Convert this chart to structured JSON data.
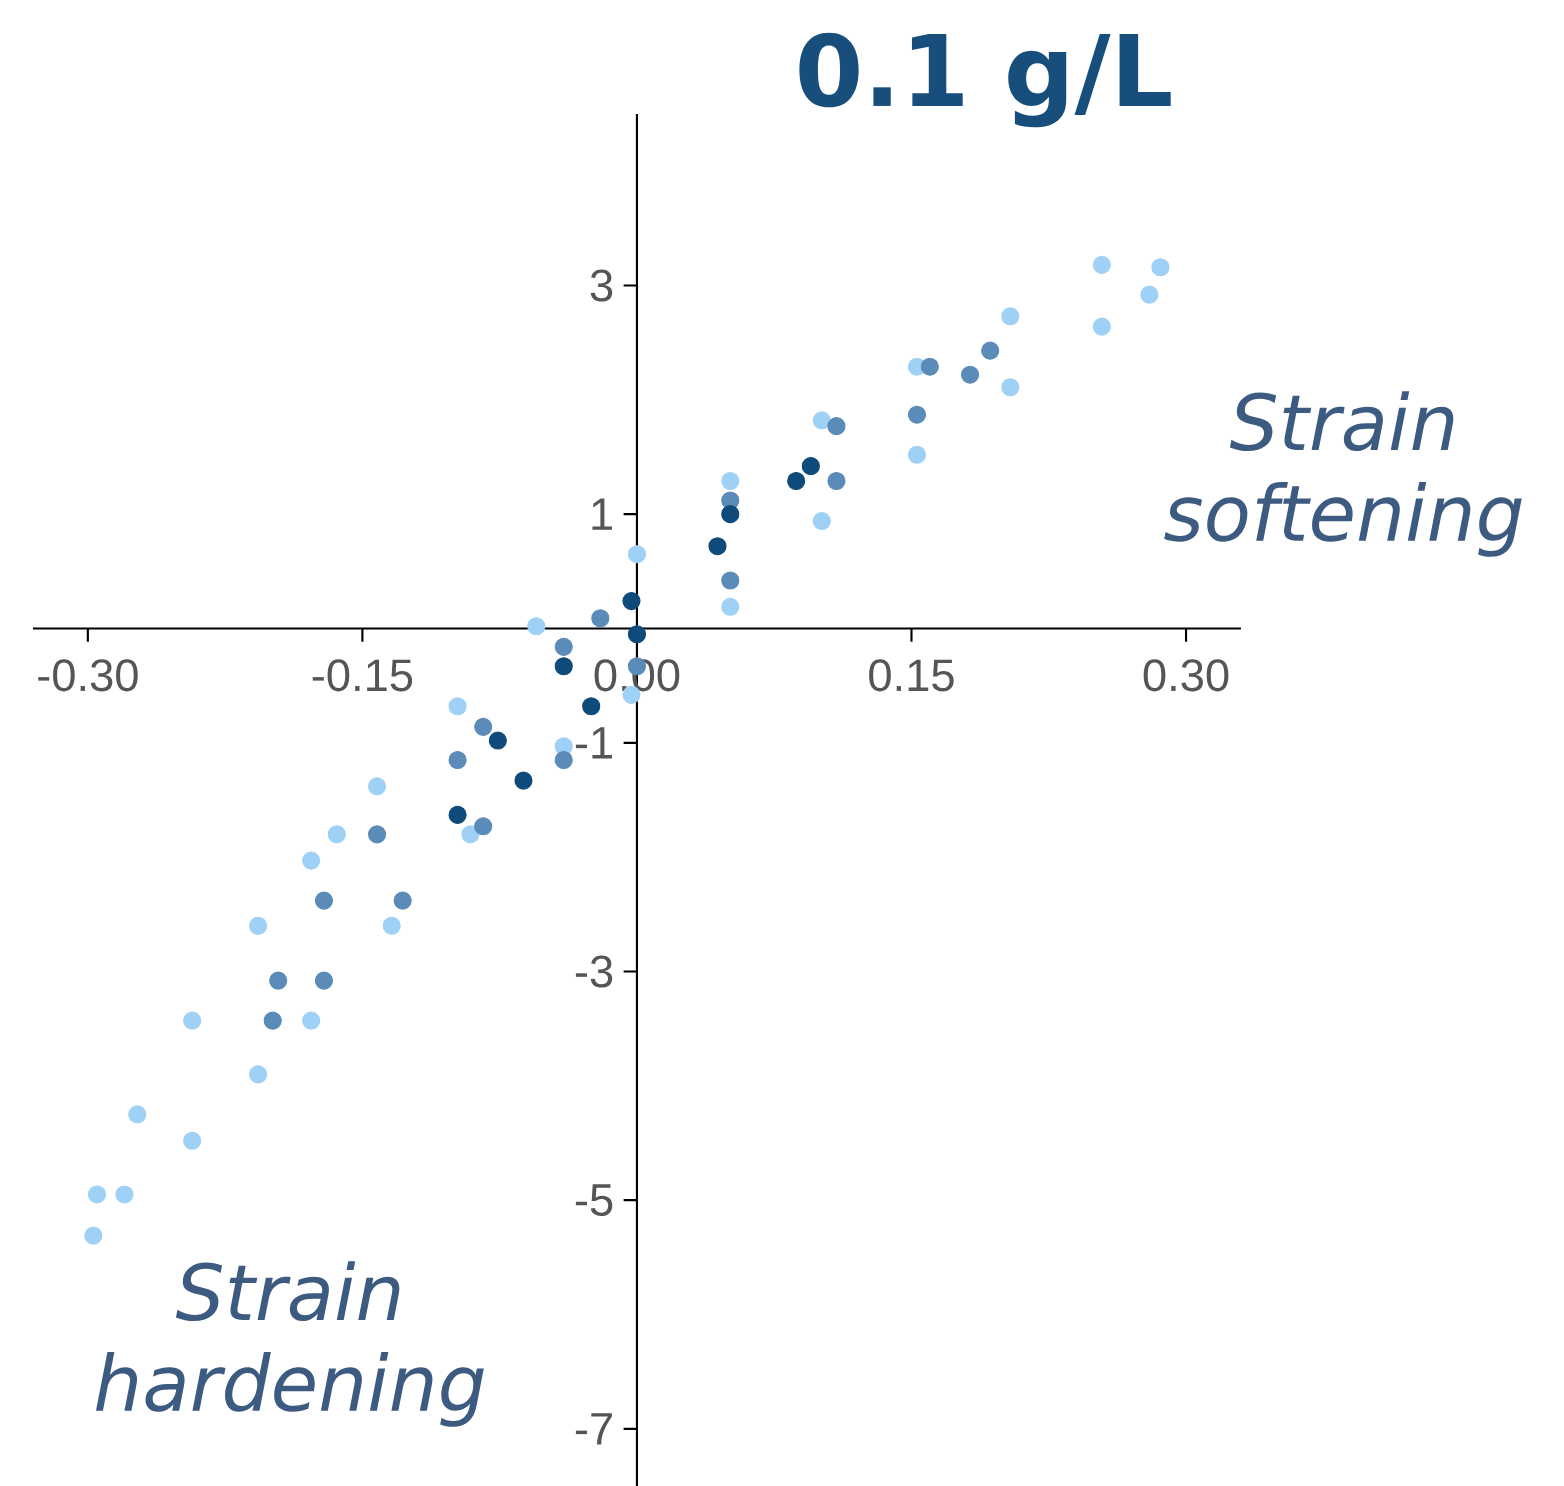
{
  "chart_data": {
    "type": "scatter",
    "title": "0.1 g/L",
    "annotations": [
      "Strain softening",
      "Strain hardening"
    ],
    "xlim": [
      -0.33,
      0.33
    ],
    "ylim": [
      -7.5,
      4.5
    ],
    "xticks": [
      {
        "value": -0.3,
        "label": "-0.30"
      },
      {
        "value": -0.15,
        "label": "-0.15"
      },
      {
        "value": 0,
        "label": "0.00"
      },
      {
        "value": 0.15,
        "label": "0.15"
      },
      {
        "value": 0.3,
        "label": "0.30"
      }
    ],
    "yticks": [
      3,
      1,
      -1,
      -3,
      -5,
      -7
    ],
    "grid": false,
    "marker": "circle",
    "series": [
      {
        "color": "#9fd0f5",
        "x": [
          0.286,
          0.254,
          0.204,
          0.153,
          0.101,
          0.051,
          0.0,
          -0.055,
          -0.098,
          -0.142,
          -0.164,
          -0.178,
          -0.207,
          -0.243,
          -0.273,
          -0.295,
          -0.297,
          -0.28,
          -0.243,
          -0.207,
          -0.178,
          -0.134,
          -0.091,
          -0.04,
          -0.003,
          0.051,
          0.101,
          0.153,
          0.204,
          0.254,
          0.28
        ],
        "values": [
          3.16,
          3.18,
          2.73,
          2.29,
          1.82,
          1.29,
          0.65,
          0.02,
          -0.68,
          -1.38,
          -1.8,
          -2.03,
          -2.6,
          -3.43,
          -4.25,
          -4.95,
          -5.31,
          -4.95,
          -4.48,
          -3.9,
          -3.43,
          -2.6,
          -1.8,
          -1.03,
          -0.58,
          0.19,
          0.94,
          1.52,
          2.11,
          2.64,
          2.92
        ]
      },
      {
        "color": "#5b8bb8",
        "x": [
          0.193,
          0.16,
          0.109,
          0.051,
          -0.02,
          -0.04,
          -0.084,
          -0.098,
          -0.142,
          -0.171,
          -0.196,
          -0.199,
          -0.171,
          -0.128,
          -0.084,
          -0.04,
          0.0,
          0.051,
          0.109,
          0.153,
          0.182
        ],
        "values": [
          2.43,
          2.29,
          1.77,
          1.12,
          0.09,
          -0.16,
          -0.86,
          -1.15,
          -1.8,
          -2.38,
          -3.08,
          -3.43,
          -3.08,
          -2.38,
          -1.73,
          -1.15,
          -0.33,
          0.42,
          1.29,
          1.87,
          2.22
        ]
      },
      {
        "color": "#0e4a7a",
        "x": [
          0.095,
          0.051,
          -0.003,
          -0.04,
          -0.076,
          -0.098,
          -0.062,
          -0.025,
          0.0,
          0.044,
          0.087
        ],
        "values": [
          1.42,
          1.0,
          0.24,
          -0.33,
          -0.98,
          -1.63,
          -1.33,
          -0.68,
          -0.05,
          0.72,
          1.29
        ]
      }
    ]
  }
}
